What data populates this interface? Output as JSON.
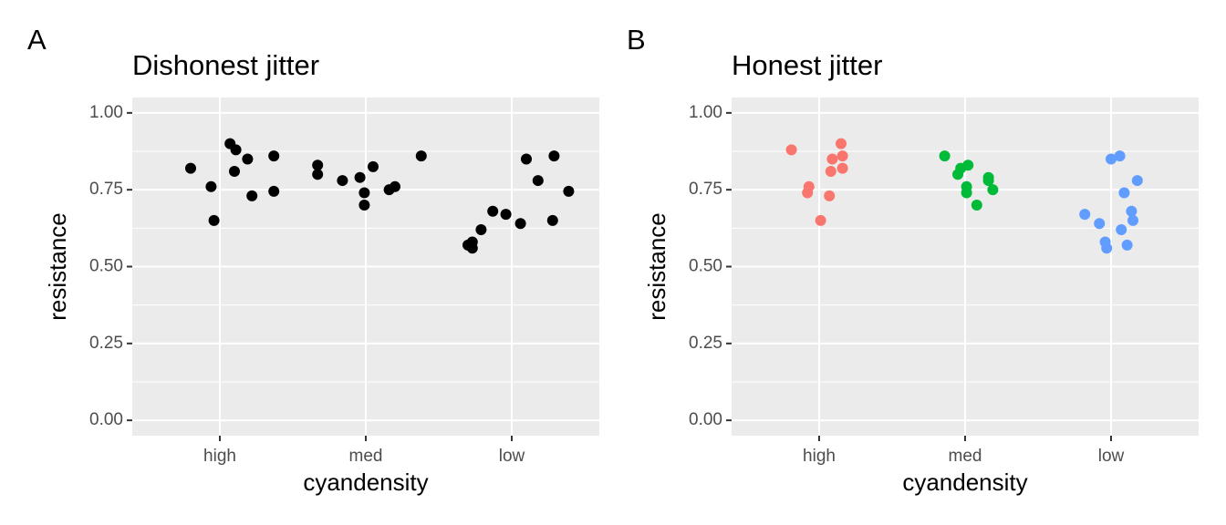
{
  "chart_data": [
    {
      "type": "scatter",
      "tag": "A",
      "title": "Dishonest jitter",
      "xlabel": "cyandensity",
      "ylabel": "resistance",
      "xlim": [
        0.4,
        3.6
      ],
      "xticks": [
        {
          "value": 1,
          "label": "high"
        },
        {
          "value": 2,
          "label": "med"
        },
        {
          "value": 3,
          "label": "low"
        }
      ],
      "ylim": [
        -0.05,
        1.05
      ],
      "yticks": [
        {
          "value": 0,
          "label": "0.00"
        },
        {
          "value": 0.25,
          "label": "0.25"
        },
        {
          "value": 0.5,
          "label": "0.50"
        },
        {
          "value": 0.75,
          "label": "0.75"
        },
        {
          "value": 1,
          "label": "1.00"
        }
      ],
      "yminor": [
        0.125,
        0.375,
        0.625,
        0.875
      ],
      "grid": true,
      "series": [
        {
          "color": "#000000",
          "x": [
            0.8,
            0.94,
            0.96,
            1.07,
            1.11,
            1.1,
            1.19,
            1.22,
            1.37,
            1.37,
            1.67,
            1.67,
            1.84,
            1.96,
            1.99,
            1.99,
            2.05,
            2.16,
            2.2,
            2.38,
            2.7,
            2.73,
            2.73,
            2.79,
            2.87,
            2.96,
            3.06,
            3.1,
            3.18,
            3.28,
            3.29,
            3.39
          ],
          "values": [
            0.82,
            0.76,
            0.65,
            0.9,
            0.88,
            0.81,
            0.85,
            0.73,
            0.86,
            0.745,
            0.83,
            0.8,
            0.78,
            0.79,
            0.74,
            0.7,
            0.825,
            0.75,
            0.76,
            0.86,
            0.57,
            0.58,
            0.56,
            0.62,
            0.68,
            0.67,
            0.64,
            0.85,
            0.78,
            0.65,
            0.86,
            0.745
          ]
        }
      ]
    },
    {
      "type": "scatter",
      "tag": "B",
      "title": "Honest jitter",
      "xlabel": "cyandensity",
      "ylabel": "resistance",
      "xlim": [
        0.4,
        3.6
      ],
      "xticks": [
        {
          "value": 1,
          "label": "high"
        },
        {
          "value": 2,
          "label": "med"
        },
        {
          "value": 3,
          "label": "low"
        }
      ],
      "ylim": [
        -0.05,
        1.05
      ],
      "yticks": [
        {
          "value": 0,
          "label": "0.00"
        },
        {
          "value": 0.25,
          "label": "0.25"
        },
        {
          "value": 0.5,
          "label": "0.50"
        },
        {
          "value": 0.75,
          "label": "0.75"
        },
        {
          "value": 1,
          "label": "1.00"
        }
      ],
      "yminor": [
        0.125,
        0.375,
        0.625,
        0.875
      ],
      "grid": true,
      "series": [
        {
          "color": "#f8766d",
          "x": [
            0.81,
            0.93,
            0.92,
            1.01,
            1.07,
            1.08,
            1.09,
            1.15,
            1.16,
            1.16
          ],
          "values": [
            0.88,
            0.76,
            0.74,
            0.65,
            0.73,
            0.81,
            0.85,
            0.9,
            0.86,
            0.82
          ]
        },
        {
          "color": "#00ba38",
          "x": [
            1.86,
            1.95,
            1.97,
            2.02,
            2.01,
            2.01,
            2.08,
            2.16,
            2.16,
            2.19
          ],
          "values": [
            0.86,
            0.8,
            0.82,
            0.83,
            0.76,
            0.74,
            0.7,
            0.79,
            0.78,
            0.75
          ]
        },
        {
          "color": "#619cff",
          "x": [
            2.82,
            2.92,
            2.96,
            2.97,
            3.0,
            3.06,
            3.09,
            3.07,
            3.11,
            3.14,
            3.15,
            3.18
          ],
          "values": [
            0.67,
            0.64,
            0.58,
            0.56,
            0.85,
            0.86,
            0.74,
            0.62,
            0.57,
            0.68,
            0.65,
            0.78
          ]
        }
      ]
    }
  ]
}
